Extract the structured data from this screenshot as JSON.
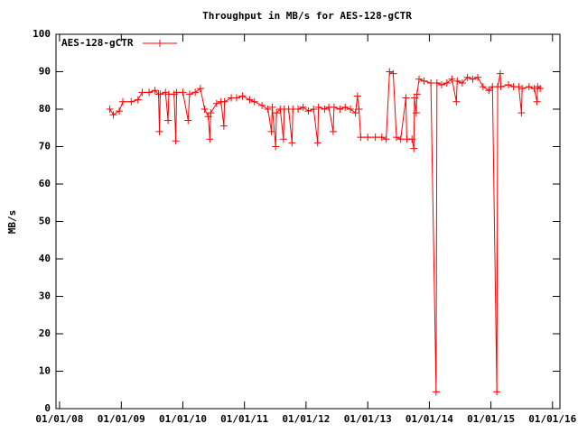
{
  "chart_data": {
    "type": "line",
    "title": "Throughput in MB/s for AES-128-gCTR",
    "y_label": "MB/s",
    "xlim": [
      "2007-12-11",
      "2016-02-14"
    ],
    "ylim": [
      0,
      100
    ],
    "xticks": [
      {
        "value": "2008-01-01",
        "label": "01/01/08"
      },
      {
        "value": "2009-01-01",
        "label": "01/01/09"
      },
      {
        "value": "2010-01-01",
        "label": "01/01/10"
      },
      {
        "value": "2011-01-01",
        "label": "01/01/11"
      },
      {
        "value": "2012-01-01",
        "label": "01/01/12"
      },
      {
        "value": "2013-01-01",
        "label": "01/01/13"
      },
      {
        "value": "2014-01-01",
        "label": "01/01/14"
      },
      {
        "value": "2015-01-01",
        "label": "01/01/15"
      },
      {
        "value": "2016-01-01",
        "label": "01/01/16"
      }
    ],
    "yticks": [
      0,
      10,
      20,
      30,
      40,
      50,
      60,
      70,
      80,
      90,
      100
    ],
    "legend": "top-left",
    "x": [
      "2008-10-25",
      "2008-11-15",
      "2008-12-20",
      "2009-01-10",
      "2009-03-01",
      "2009-04-10",
      "2009-05-05",
      "2009-06-15",
      "2009-07-20",
      "2009-08-10",
      "2009-08-15",
      "2009-08-20",
      "2009-09-20",
      "2009-10-05",
      "2009-10-10",
      "2009-11-10",
      "2009-11-20",
      "2009-11-25",
      "2010-01-01",
      "2010-02-01",
      "2010-02-10",
      "2010-03-15",
      "2010-04-15",
      "2010-05-10",
      "2010-06-01",
      "2010-06-10",
      "2010-06-15",
      "2010-07-20",
      "2010-08-15",
      "2010-09-01",
      "2010-09-05",
      "2010-10-15",
      "2010-11-15",
      "2010-12-20",
      "2011-02-01",
      "2011-03-01",
      "2011-04-15",
      "2011-05-20",
      "2011-06-10",
      "2011-06-15",
      "2011-07-05",
      "2011-07-10",
      "2011-08-01",
      "2011-08-20",
      "2011-08-25",
      "2011-09-20",
      "2011-10-10",
      "2011-10-15",
      "2011-11-15",
      "2011-12-15",
      "2012-01-15",
      "2012-02-15",
      "2012-03-10",
      "2012-03-15",
      "2012-04-20",
      "2012-05-15",
      "2012-06-10",
      "2012-06-15",
      "2012-07-20",
      "2012-08-20",
      "2012-09-20",
      "2012-10-20",
      "2012-11-01",
      "2012-11-10",
      "2012-11-20",
      "2013-01-01",
      "2013-02-15",
      "2013-03-25",
      "2013-04-20",
      "2013-05-10",
      "2013-06-01",
      "2013-06-20",
      "2013-07-15",
      "2013-08-15",
      "2013-08-20",
      "2013-09-20",
      "2013-10-01",
      "2013-10-05",
      "2013-10-15",
      "2013-10-20",
      "2013-11-01",
      "2013-12-01",
      "2014-01-10",
      "2014-02-10",
      "2014-02-15",
      "2014-03-15",
      "2014-04-15",
      "2014-05-15",
      "2014-06-10",
      "2014-06-15",
      "2014-07-15",
      "2014-08-15",
      "2014-09-15",
      "2014-10-15",
      "2014-11-15",
      "2014-12-20",
      "2015-01-10",
      "2015-02-05",
      "2015-02-10",
      "2015-02-25",
      "2015-03-01",
      "2015-04-15",
      "2015-05-15",
      "2015-06-15",
      "2015-07-01",
      "2015-07-05",
      "2015-08-15",
      "2015-09-15",
      "2015-10-01",
      "2015-10-05",
      "2015-10-20"
    ],
    "series": [
      {
        "name": "AES-128-gCTR",
        "color": "#ff0000",
        "values": [
          80,
          78.5,
          79.5,
          82,
          82,
          82.5,
          84.5,
          84.5,
          85,
          84,
          74,
          84,
          84.5,
          77,
          84,
          84,
          71.5,
          84.5,
          84.5,
          77,
          84,
          84.5,
          85.5,
          80,
          78,
          72,
          79,
          81.5,
          82,
          75.5,
          82,
          83,
          83,
          83.5,
          82.5,
          82,
          81,
          80,
          74,
          80.5,
          70,
          79,
          80,
          72,
          80,
          80,
          71,
          80,
          80,
          80.5,
          79.5,
          80,
          71,
          80.5,
          80,
          80.5,
          74,
          80.5,
          80,
          80.5,
          80,
          79,
          83.5,
          80,
          72.5,
          72.5,
          72.5,
          72.5,
          72,
          90,
          89.5,
          72.5,
          72,
          83,
          72,
          72,
          69.5,
          83,
          79,
          84,
          88,
          87.5,
          87,
          4.5,
          87,
          86.5,
          87,
          88,
          82,
          87.5,
          87,
          88.5,
          88,
          88.5,
          86,
          85,
          86,
          4.5,
          86,
          89.5,
          86,
          86.5,
          86,
          86,
          79,
          85.5,
          86,
          85.5,
          82,
          86,
          85.5
        ]
      }
    ]
  }
}
